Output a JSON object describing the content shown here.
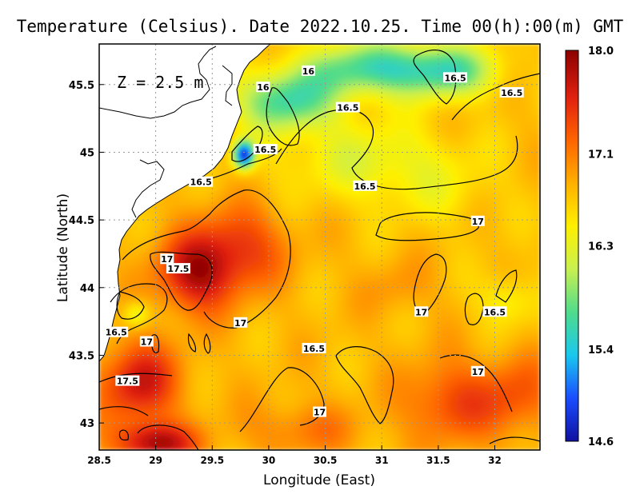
{
  "chart_data": {
    "type": "heatmap",
    "title": "Temperature (Celsius). Date 2022.10.25. Time 00(h):00(m) GMT",
    "annotation": "Z = 2.5 m",
    "xlabel": "Longitude (East)",
    "ylabel": "Latitude (North)",
    "xlim": [
      28.5,
      32.4
    ],
    "ylim": [
      42.8,
      45.8
    ],
    "x_ticks": [
      "28.5",
      "29",
      "29.5",
      "30",
      "30.5",
      "31",
      "31.5",
      "32"
    ],
    "x_tick_values": [
      28.5,
      29,
      29.5,
      30,
      30.5,
      31,
      31.5,
      32
    ],
    "y_ticks": [
      "43",
      "43.5",
      "44",
      "44.5",
      "45",
      "45.5"
    ],
    "y_tick_values": [
      43,
      43.5,
      44,
      44.5,
      45,
      45.5
    ],
    "grid": true,
    "colorbar": {
      "ticks": [
        "18.0",
        "17.1",
        "16.3",
        "15.4",
        "14.6"
      ],
      "tick_values": [
        18.0,
        17.1,
        16.3,
        15.4,
        14.6
      ],
      "range": [
        14.6,
        18.0
      ],
      "colors": [
        "#1010a0",
        "#1a4dff",
        "#19c8ee",
        "#4fdc8c",
        "#c8f050",
        "#fff000",
        "#ffb000",
        "#ff6400",
        "#e02010",
        "#8c0000"
      ]
    },
    "contour_labels": [
      {
        "text": "16",
        "x": 29.95,
        "y": 45.48
      },
      {
        "text": "16",
        "x": 30.35,
        "y": 45.6
      },
      {
        "text": "16.5",
        "x": 31.65,
        "y": 45.55
      },
      {
        "text": "16.5",
        "x": 32.15,
        "y": 45.44
      },
      {
        "text": "16.5",
        "x": 30.7,
        "y": 45.33
      },
      {
        "text": "16.5",
        "x": 29.97,
        "y": 45.02
      },
      {
        "text": "16.5",
        "x": 29.4,
        "y": 44.78
      },
      {
        "text": "16.5",
        "x": 30.85,
        "y": 44.75
      },
      {
        "text": "17",
        "x": 31.85,
        "y": 44.49
      },
      {
        "text": "17",
        "x": 29.1,
        "y": 44.21
      },
      {
        "text": "17.5",
        "x": 29.2,
        "y": 44.14
      },
      {
        "text": "17",
        "x": 29.75,
        "y": 43.74
      },
      {
        "text": "17",
        "x": 31.35,
        "y": 43.82
      },
      {
        "text": "16.5",
        "x": 32.0,
        "y": 43.82
      },
      {
        "text": "16.5",
        "x": 28.65,
        "y": 43.67
      },
      {
        "text": "17",
        "x": 28.92,
        "y": 43.6
      },
      {
        "text": "16.5",
        "x": 30.4,
        "y": 43.55
      },
      {
        "text": "17",
        "x": 31.85,
        "y": 43.38
      },
      {
        "text": "17.5",
        "x": 28.75,
        "y": 43.31
      },
      {
        "text": "17",
        "x": 30.45,
        "y": 43.08
      }
    ],
    "hotspots": [
      {
        "x": 29.35,
        "y": 44.1,
        "sx": 0.35,
        "sy": 0.28,
        "value": 17.75
      },
      {
        "x": 29.75,
        "y": 44.3,
        "sx": 0.4,
        "sy": 0.3,
        "value": 17.45
      },
      {
        "x": 28.85,
        "y": 43.3,
        "sx": 0.35,
        "sy": 0.3,
        "value": 17.7
      },
      {
        "x": 29.0,
        "y": 42.85,
        "sx": 0.35,
        "sy": 0.15,
        "value": 17.85
      },
      {
        "x": 31.6,
        "y": 43.15,
        "sx": 0.4,
        "sy": 0.3,
        "value": 17.4
      },
      {
        "x": 32.2,
        "y": 43.2,
        "sx": 0.35,
        "sy": 0.3,
        "value": 17.3
      },
      {
        "x": 31.15,
        "y": 44.0,
        "sx": 0.3,
        "sy": 0.2,
        "value": 17.0
      },
      {
        "x": 30.3,
        "y": 42.95,
        "sx": 0.5,
        "sy": 0.2,
        "value": 17.15
      },
      {
        "x": 30.15,
        "y": 45.38,
        "sx": 0.45,
        "sy": 0.22,
        "value": 15.7
      },
      {
        "x": 30.9,
        "y": 45.62,
        "sx": 0.6,
        "sy": 0.2,
        "value": 15.7
      },
      {
        "x": 31.6,
        "y": 45.6,
        "sx": 0.45,
        "sy": 0.2,
        "value": 15.9
      },
      {
        "x": 29.78,
        "y": 44.98,
        "sx": 0.09,
        "sy": 0.1,
        "value": 14.9
      },
      {
        "x": 30.85,
        "y": 44.95,
        "sx": 0.8,
        "sy": 0.3,
        "value": 16.35
      },
      {
        "x": 28.83,
        "y": 43.8,
        "sx": 0.12,
        "sy": 0.1,
        "value": 16.25
      },
      {
        "x": 31.5,
        "y": 44.7,
        "sx": 0.6,
        "sy": 0.3,
        "value": 16.6
      },
      {
        "x": 32.1,
        "y": 43.9,
        "sx": 0.25,
        "sy": 0.2,
        "value": 16.4
      }
    ],
    "base_value": 16.8
  }
}
